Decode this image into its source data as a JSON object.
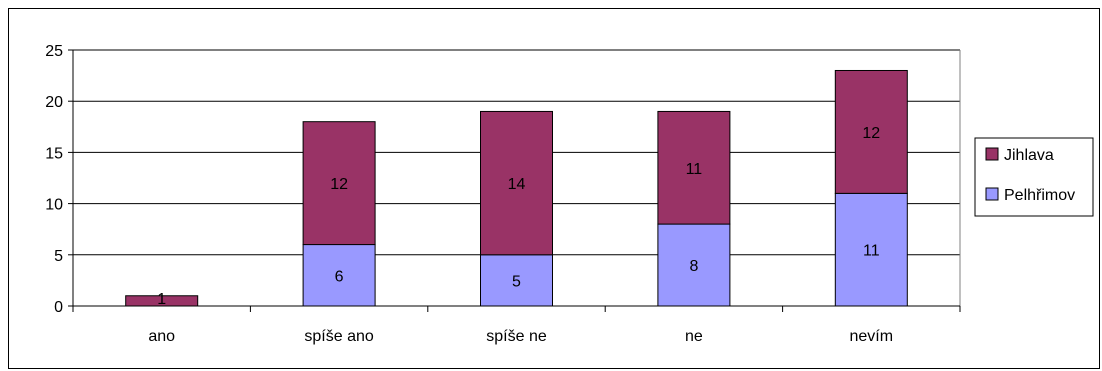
{
  "chart_data": {
    "type": "bar",
    "stacked": true,
    "categories": [
      "ano",
      "spíše ano",
      "spíše ne",
      "ne",
      "nevím"
    ],
    "series": [
      {
        "name": "Pelhřimov",
        "color": "#9999ff",
        "values": [
          0,
          6,
          5,
          8,
          11
        ],
        "labels": [
          "",
          "6",
          "5",
          "8",
          "11"
        ]
      },
      {
        "name": "Jihlava",
        "color": "#993366",
        "values": [
          1,
          12,
          14,
          11,
          12
        ],
        "labels": [
          "1",
          "12",
          "14",
          "11",
          "12"
        ]
      }
    ],
    "legend_order": [
      "Jihlava",
      "Pelhřimov"
    ],
    "ylim": [
      0,
      25
    ],
    "yticks": [
      "0",
      "5",
      "10",
      "15",
      "20",
      "25"
    ],
    "grid": true,
    "legend_position": "right",
    "title": "",
    "xlabel": "",
    "ylabel": ""
  }
}
